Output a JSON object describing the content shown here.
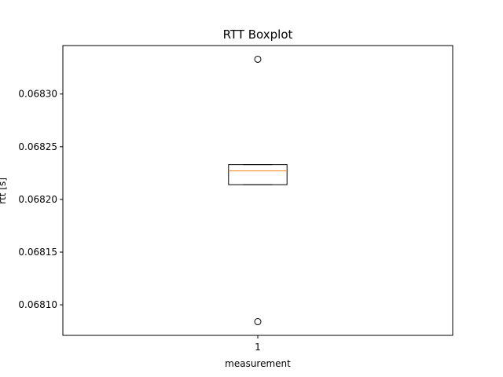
{
  "chart_data": {
    "type": "boxplot",
    "title": "RTT Boxplot",
    "xlabel": "measurement",
    "ylabel": "rtt [s]",
    "categories": [
      "1"
    ],
    "boxes": [
      {
        "label": "1",
        "whisker_low": 0.068214,
        "q1": 0.068214,
        "median": 0.068227,
        "q3": 0.068233,
        "whisker_high": 0.068233,
        "outliers": [
          0.068333,
          0.068084
        ]
      }
    ],
    "yticks": [
      "0.06810",
      "0.06815",
      "0.06820",
      "0.06825",
      "0.06830"
    ],
    "ylim": [
      0.068071,
      0.068346
    ],
    "grid": false,
    "legend": "none",
    "colors": {
      "box": "#000000",
      "median": "#ff7f0e",
      "outlier": "#000000"
    }
  }
}
